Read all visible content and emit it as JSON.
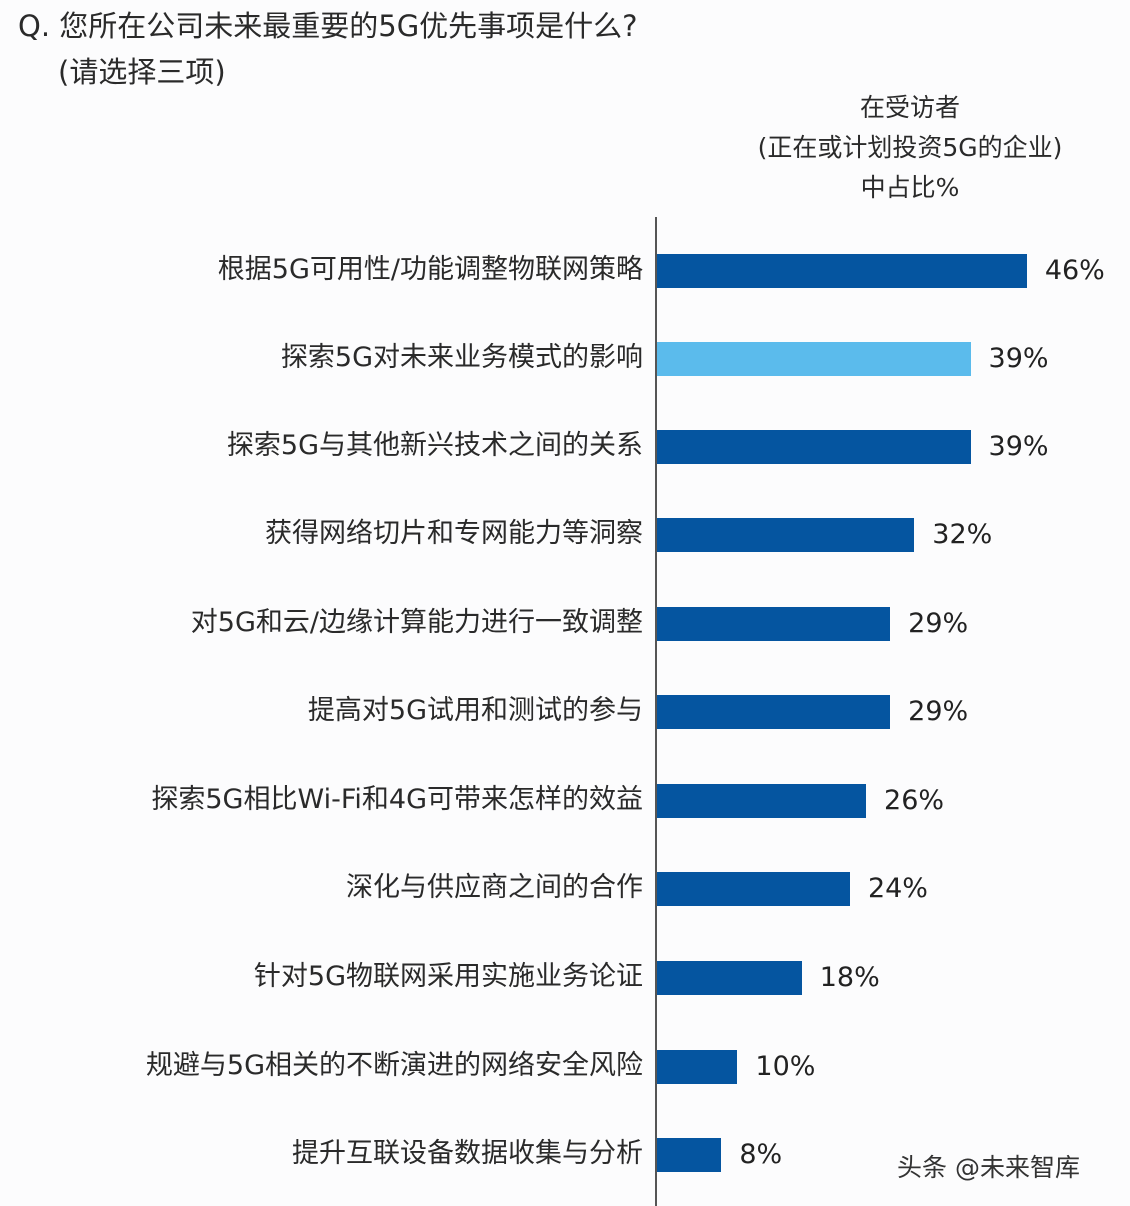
{
  "question": {
    "line1": "Q. 您所在公司未来最重要的5G优先事项是什么?",
    "line2": "(请选择三项)"
  },
  "column_header": {
    "line1": "在受访者",
    "line2": "(正在或计划投资5G的企业)",
    "line3": "中占比%"
  },
  "watermark": "头条 @未来智库",
  "colors": {
    "bar": "#0555a0",
    "bar_highlight": "#5bbbec",
    "axis": "#555555"
  },
  "chart_data": {
    "type": "bar",
    "orientation": "horizontal",
    "title": "Q. 您所在公司未来最重要的5G优先事项是什么?(请选择三项)",
    "xlabel": "在受访者(正在或计划投资5G的企业)中占比%",
    "ylabel": "",
    "xlim": [
      0,
      50
    ],
    "grid": false,
    "legend": null,
    "categories": [
      "根据5G可用性/功能调整物联网策略",
      "探索5G对未来业务模式的影响",
      "探索5G与其他新兴技术之间的关系",
      "获得网络切片和专网能力等洞察",
      "对5G和云/边缘计算能力进行一致调整",
      "提高对5G试用和测试的参与",
      "探索5G相比Wi-Fi和4G可带来怎样的效益",
      "深化与供应商之间的合作",
      "针对5G物联网采用实施业务论证",
      "规避与5G相关的不断演进的网络安全风险",
      "提升互联设备数据收集与分析"
    ],
    "values": [
      46,
      39,
      39,
      32,
      29,
      29,
      26,
      24,
      18,
      10,
      8
    ],
    "value_labels": [
      "46%",
      "39%",
      "39%",
      "32%",
      "29%",
      "29%",
      "26%",
      "24%",
      "18%",
      "10%",
      "8%"
    ],
    "highlighted_index": 1,
    "unit": "%"
  }
}
